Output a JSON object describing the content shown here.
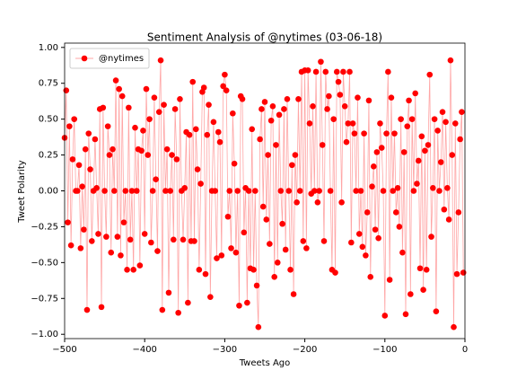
{
  "chart_data": {
    "type": "line",
    "title": "Sentiment Analysis of @nytimes (03-06-18)",
    "x_label": "Tweets Ago",
    "y_label": "Tweet Polarity",
    "x": [
      -500,
      -498,
      -496,
      -494,
      -492,
      -490,
      -488,
      -486,
      -484,
      -482,
      -480,
      -478,
      -476,
      -474,
      -472,
      -470,
      -468,
      -466,
      -464,
      -462,
      -460,
      -458,
      -456,
      -454,
      -452,
      -450,
      -448,
      -446,
      -444,
      -442,
      -440,
      -438,
      -436,
      -434,
      -432,
      -430,
      -428,
      -426,
      -424,
      -422,
      -420,
      -418,
      -416,
      -414,
      -412,
      -410,
      -408,
      -406,
      -404,
      -402,
      -400,
      -398,
      -396,
      -394,
      -392,
      -390,
      -388,
      -386,
      -384,
      -382,
      -380,
      -378,
      -376,
      -374,
      -372,
      -370,
      -368,
      -366,
      -364,
      -362,
      -360,
      -358,
      -356,
      -354,
      -352,
      -350,
      -348,
      -346,
      -344,
      -342,
      -340,
      -338,
      -336,
      -334,
      -332,
      -330,
      -328,
      -326,
      -324,
      -322,
      -320,
      -318,
      -316,
      -314,
      -312,
      -310,
      -308,
      -306,
      -304,
      -302,
      -300,
      -298,
      -296,
      -294,
      -292,
      -290,
      -288,
      -286,
      -284,
      -282,
      -280,
      -278,
      -276,
      -274,
      -272,
      -270,
      -268,
      -266,
      -264,
      -262,
      -260,
      -258,
      -256,
      -254,
      -252,
      -250,
      -248,
      -246,
      -244,
      -242,
      -240,
      -238,
      -236,
      -234,
      -232,
      -230,
      -228,
      -226,
      -224,
      -222,
      -220,
      -218,
      -216,
      -214,
      -212,
      -210,
      -208,
      -206,
      -204,
      -202,
      -200,
      -198,
      -196,
      -194,
      -192,
      -190,
      -188,
      -186,
      -184,
      -182,
      -180,
      -178,
      -176,
      -174,
      -172,
      -170,
      -168,
      -166,
      -164,
      -162,
      -160,
      -158,
      -156,
      -154,
      -152,
      -150,
      -148,
      -146,
      -144,
      -142,
      -140,
      -138,
      -136,
      -134,
      -132,
      -130,
      -128,
      -126,
      -124,
      -122,
      -120,
      -118,
      -116,
      -114,
      -112,
      -110,
      -108,
      -106,
      -104,
      -102,
      -100,
      -98,
      -96,
      -94,
      -92,
      -90,
      -88,
      -86,
      -84,
      -82,
      -80,
      -78,
      -76,
      -74,
      -72,
      -70,
      -68,
      -66,
      -64,
      -62,
      -60,
      -58,
      -56,
      -54,
      -52,
      -50,
      -48,
      -46,
      -44,
      -42,
      -40,
      -38,
      -36,
      -34,
      -32,
      -30,
      -28,
      -26,
      -24,
      -22,
      -20,
      -18,
      -16,
      -14,
      -12,
      -10,
      -8,
      -6,
      -4,
      -2
    ],
    "series": [
      {
        "name": "@nytimes",
        "color": "#ff0000",
        "values": [
          0.37,
          0.7,
          -0.22,
          0.45,
          -0.38,
          0.22,
          0.5,
          0,
          0,
          0.18,
          -0.4,
          0.03,
          -0.27,
          0.29,
          -0.83,
          0.4,
          0.15,
          -0.35,
          0,
          0.36,
          0.02,
          -0.3,
          0.57,
          -0.81,
          0.58,
          0,
          -0.32,
          0.45,
          0.25,
          -0.43,
          0.29,
          0,
          0.77,
          -0.32,
          0.71,
          -0.45,
          0.66,
          -0.22,
          0,
          -0.55,
          0.58,
          -0.34,
          0,
          -0.55,
          0.44,
          0,
          0.29,
          -0.52,
          0.28,
          0.42,
          -0.3,
          0.71,
          0.25,
          0.5,
          -0.36,
          0,
          0.65,
          0.08,
          -0.42,
          0.55,
          0.91,
          -0.83,
          0.6,
          0,
          0.29,
          -0.71,
          0,
          0.25,
          -0.34,
          0.57,
          0.22,
          -0.85,
          0.64,
          0,
          -0.34,
          0.02,
          0.41,
          -0.78,
          0.39,
          -0.35,
          0.76,
          -0.35,
          0.43,
          0.15,
          -0.55,
          0.05,
          0.69,
          0.72,
          -0.58,
          0.39,
          0.6,
          -0.74,
          0,
          0.48,
          0,
          -0.47,
          0.41,
          0.34,
          -0.45,
          0.73,
          0.81,
          0.7,
          -0.18,
          0,
          -0.4,
          0.54,
          0.19,
          -0.43,
          0,
          -0.8,
          0.66,
          0.64,
          -0.29,
          0.02,
          -0.78,
          0,
          -0.54,
          0.43,
          -0.55,
          0,
          -0.66,
          -0.95,
          0.36,
          0.57,
          -0.11,
          0.62,
          -0.2,
          0.25,
          -0.37,
          0.49,
          0.59,
          -0.6,
          0.32,
          -0.5,
          0.53,
          0,
          -0.23,
          0.57,
          -0.41,
          0.64,
          0,
          -0.55,
          0.18,
          -0.72,
          0.25,
          -0.08,
          0.64,
          0,
          0.83,
          -0.35,
          0.84,
          -0.4,
          0.84,
          0.47,
          -0.02,
          0.59,
          0,
          0.83,
          -0.08,
          0,
          0.9,
          0.32,
          -0.35,
          0.83,
          0.57,
          0.66,
          0,
          -0.55,
          0.5,
          -0.57,
          0.83,
          0.76,
          0.67,
          -0.08,
          0.83,
          0.59,
          0.34,
          0.47,
          0.83,
          -0.36,
          0.47,
          0.4,
          0,
          0.65,
          -0.3,
          0,
          -0.39,
          0.4,
          -0.45,
          -0.15,
          0.63,
          -0.6,
          0.03,
          0.17,
          -0.27,
          0.27,
          -0.33,
          0.47,
          0.3,
          0,
          -0.87,
          0.4,
          0.83,
          -0.62,
          0.65,
          0,
          0.4,
          -0.15,
          0.02,
          -0.25,
          0.5,
          -0.43,
          0.27,
          -0.86,
          0.45,
          0.63,
          -0.72,
          0.5,
          0,
          0.68,
          0.05,
          0.21,
          -0.54,
          0.38,
          -0.69,
          0.28,
          -0.55,
          0.32,
          0.81,
          -0.32,
          0.02,
          0.5,
          -0.84,
          0.42,
          0,
          0.2,
          0.55,
          -0.13,
          0.48,
          0.02,
          -0.2,
          0.91,
          0.25,
          -0.95,
          0.47,
          -0.58,
          -0.15,
          0.36,
          0.55,
          -0.57
        ]
      }
    ],
    "xlim": [
      -500,
      0
    ],
    "xticks": [
      {
        "value": -500,
        "label": "−500"
      },
      {
        "value": -400,
        "label": "−400"
      },
      {
        "value": -300,
        "label": "−300"
      },
      {
        "value": -200,
        "label": "−200"
      },
      {
        "value": -100,
        "label": "−100"
      },
      0
    ],
    "ylim": [
      -1.03,
      1.03
    ],
    "yticks": [
      {
        "value": -1,
        "label": "−1.00"
      },
      {
        "value": -0.75,
        "label": "−0.75"
      },
      {
        "value": -0.5,
        "label": "−0.50"
      },
      {
        "value": -0.25,
        "label": "−0.25"
      },
      {
        "value": 0,
        "label": "0.00"
      },
      {
        "value": 0.25,
        "label": "0.25"
      },
      {
        "value": 0.5,
        "label": "0.50"
      },
      {
        "value": 0.75,
        "label": "0.75"
      },
      {
        "value": 1,
        "label": "1.00"
      }
    ],
    "legend": "upper left"
  }
}
